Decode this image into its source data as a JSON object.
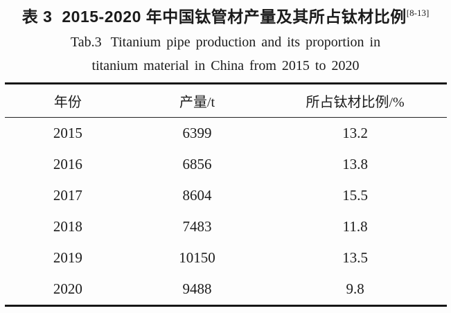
{
  "title": {
    "zh_label": "表 3",
    "zh_text": "2015-2020 年中国钛管材产量及其所占钛材比例",
    "zh_ref": "[8-13]",
    "en_label": "Tab.3",
    "en_text": "Titanium pipe production and its proportion in",
    "en_line2": "titanium material in China from 2015 to 2020"
  },
  "table": {
    "columns": [
      "年份",
      "产量/t",
      "所占钛材比例/%"
    ],
    "rows": [
      [
        "2015",
        "6399",
        "13.2"
      ],
      [
        "2016",
        "6856",
        "13.8"
      ],
      [
        "2017",
        "8604",
        "15.5"
      ],
      [
        "2018",
        "7483",
        "11.8"
      ],
      [
        "2019",
        "10150",
        "13.5"
      ],
      [
        "2020",
        "9488",
        "9.8"
      ]
    ]
  },
  "colors": {
    "text": "#1b1b1b",
    "rule": "#161616",
    "background": "#fdfdfd"
  }
}
